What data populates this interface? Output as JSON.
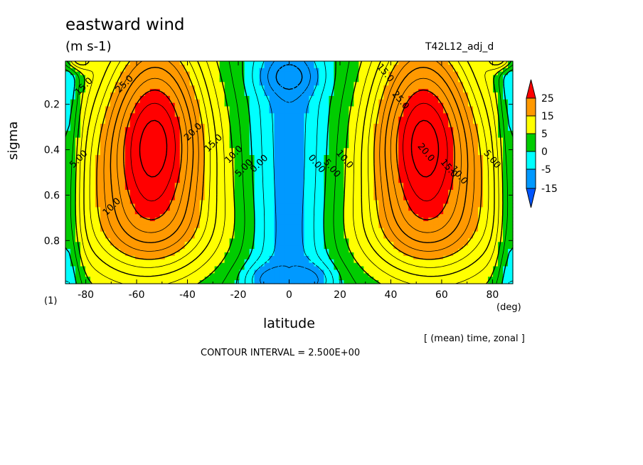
{
  "chart_data": {
    "type": "heatmap",
    "subtype": "filled-contour",
    "title": "eastward wind",
    "units": "(m s-1)",
    "run_label": "T42L12_adj_d",
    "xlabel": "latitude",
    "x_units": "(deg)",
    "ylabel": "sigma",
    "panel_label": "(1)",
    "note": "[ (mean) time, zonal ]",
    "contour_interval": "CONTOUR INTERVAL = 2.500E+00",
    "x_range": [
      -88,
      88
    ],
    "y_range": [
      0.01,
      0.99
    ],
    "y_reversed": true,
    "x_ticks": [
      "-80",
      "-60",
      "-40",
      "-20",
      "0",
      "20",
      "40",
      "60",
      "80"
    ],
    "x_tick_values": [
      -80,
      -60,
      -40,
      -20,
      0,
      20,
      40,
      60,
      80
    ],
    "y_ticks": [
      "0.2",
      "0.4",
      "0.6",
      "0.8"
    ],
    "y_tick_values": [
      0.2,
      0.4,
      0.6,
      0.8
    ],
    "colorbar": {
      "labels": [
        "25",
        "15",
        "5",
        "0",
        "-5",
        "-15"
      ],
      "levels": [
        25,
        15,
        5,
        0,
        -5,
        -15
      ],
      "colors": [
        "#ff0000",
        "#ff9900",
        "#ffff00",
        "#00cc00",
        "#00ffff",
        "#0099ff",
        "#0055ff"
      ]
    },
    "contour_labels": [
      {
        "text": "15.0",
        "lat": -80,
        "sigma": 0.13
      },
      {
        "text": "25.0",
        "lat": -64,
        "sigma": 0.12
      },
      {
        "text": "20.0",
        "lat": -37,
        "sigma": 0.33
      },
      {
        "text": "15.0",
        "lat": -29,
        "sigma": 0.38
      },
      {
        "text": "10.0",
        "lat": -21,
        "sigma": 0.43
      },
      {
        "text": "5.00",
        "lat": -17,
        "sigma": 0.49
      },
      {
        "text": "0.00",
        "lat": -11,
        "sigma": 0.47
      },
      {
        "text": "5.00",
        "lat": -82,
        "sigma": 0.45
      },
      {
        "text": "10.0",
        "lat": -69,
        "sigma": 0.66
      },
      {
        "text": "0.00",
        "lat": 10,
        "sigma": 0.47
      },
      {
        "text": "5.00",
        "lat": 16,
        "sigma": 0.49
      },
      {
        "text": "10.0",
        "lat": 21,
        "sigma": 0.45
      },
      {
        "text": "15.0",
        "lat": 37,
        "sigma": 0.07
      },
      {
        "text": "25.0",
        "lat": 43,
        "sigma": 0.19
      },
      {
        "text": "20.0",
        "lat": 53,
        "sigma": 0.42
      },
      {
        "text": "15.0",
        "lat": 62,
        "sigma": 0.49
      },
      {
        "text": "10.0",
        "lat": 66,
        "sigma": 0.52
      },
      {
        "text": "5.00",
        "lat": 79,
        "sigma": 0.45
      }
    ]
  }
}
